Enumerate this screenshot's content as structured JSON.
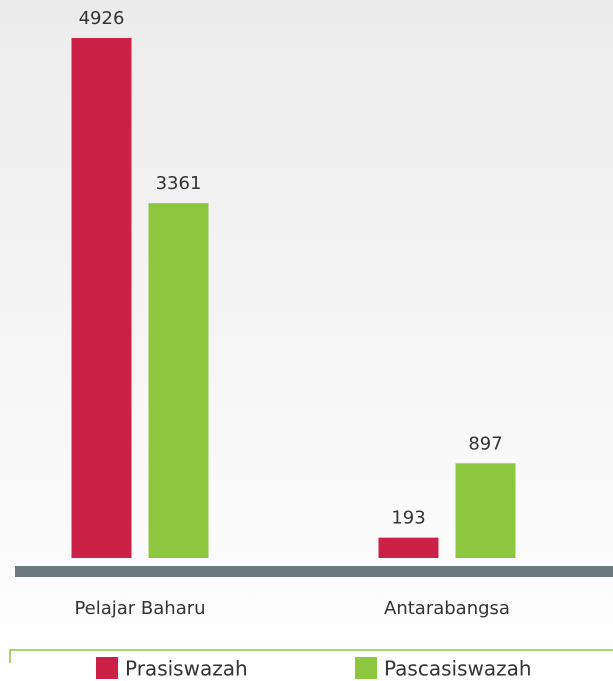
{
  "chart_data": {
    "type": "bar",
    "categories": [
      "Pelajar Baharu",
      "Antarabangsa"
    ],
    "series": [
      {
        "name": "Prasiswazah",
        "color": "#cc2147",
        "values": [
          4926,
          193
        ]
      },
      {
        "name": "Pascasiswazah",
        "color": "#8dc63f",
        "values": [
          3361,
          897
        ]
      }
    ]
  }
}
